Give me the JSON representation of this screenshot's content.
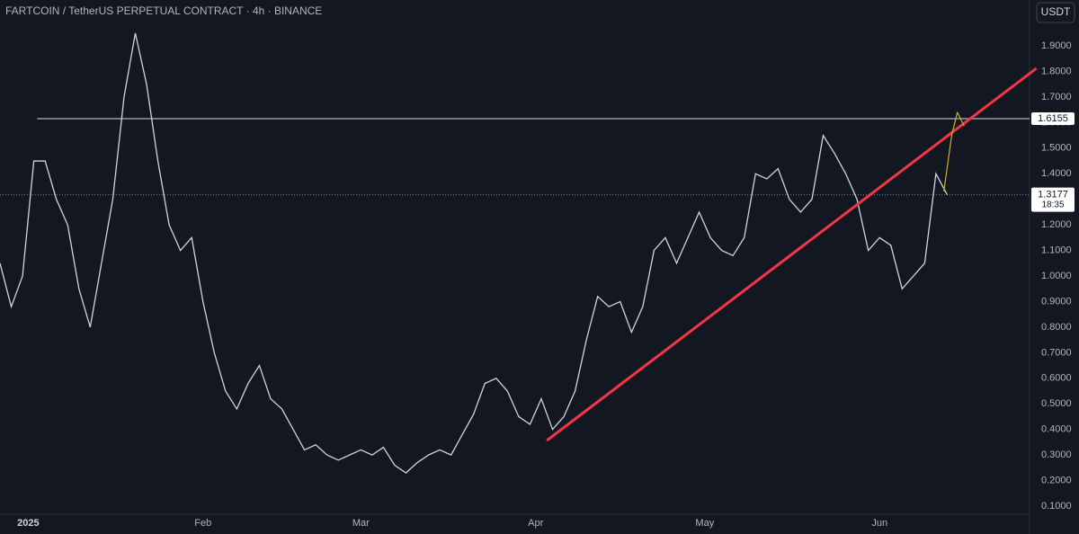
{
  "chart_data": {
    "type": "line",
    "title": "FARTCOIN / TetherUS PERPETUAL CONTRACT · 4h · BINANCE",
    "currency": "USDT",
    "background": "#131722",
    "series": [
      {
        "color": "#d1d4dc",
        "values": [
          1.05,
          0.88,
          1.0,
          1.45,
          1.45,
          1.3,
          1.2,
          0.95,
          0.8,
          1.05,
          1.3,
          1.7,
          1.95,
          1.75,
          1.45,
          1.2,
          1.1,
          1.15,
          0.9,
          0.7,
          0.55,
          0.48,
          0.58,
          0.65,
          0.52,
          0.48,
          0.4,
          0.32,
          0.34,
          0.3,
          0.28,
          0.3,
          0.32,
          0.3,
          0.33,
          0.26,
          0.23,
          0.27,
          0.3,
          0.32,
          0.3,
          0.38,
          0.46,
          0.58,
          0.6,
          0.55,
          0.45,
          0.42,
          0.52,
          0.4,
          0.45,
          0.55,
          0.75,
          0.92,
          0.88,
          0.9,
          0.78,
          0.88,
          1.1,
          1.15,
          1.05,
          1.15,
          1.25,
          1.15,
          1.1,
          1.08,
          1.15,
          1.4,
          1.38,
          1.42,
          1.3,
          1.25,
          1.3,
          1.55,
          1.48,
          1.4,
          1.3,
          1.1,
          1.15,
          1.12,
          0.95,
          1.0,
          1.05,
          1.4,
          1.3177
        ]
      }
    ],
    "xlim": [
      0,
      91.3
    ],
    "xticks": [
      {
        "value": 2.5,
        "label": "2025"
      },
      {
        "value": 18,
        "label": "Feb"
      },
      {
        "value": 32,
        "label": "Mar"
      },
      {
        "value": 47.5,
        "label": "Apr"
      },
      {
        "value": 62.5,
        "label": "May"
      },
      {
        "value": 78,
        "label": "Jun"
      }
    ],
    "ylim": [
      -0.009,
      2.0796
    ],
    "yticks": [
      {
        "value": 0.1,
        "label": "0.1000"
      },
      {
        "value": 0.2,
        "label": "0.2000"
      },
      {
        "value": 0.3,
        "label": "0.3000"
      },
      {
        "value": 0.4,
        "label": "0.4000"
      },
      {
        "value": 0.5,
        "label": "0.5000"
      },
      {
        "value": 0.6,
        "label": "0.6000"
      },
      {
        "value": 0.7,
        "label": "0.7000"
      },
      {
        "value": 0.8,
        "label": "0.8000"
      },
      {
        "value": 0.9,
        "label": "0.9000"
      },
      {
        "value": 1.0,
        "label": "1.0000"
      },
      {
        "value": 1.1,
        "label": "1.1000"
      },
      {
        "value": 1.2,
        "label": "1.2000"
      },
      {
        "value": 1.3,
        "label": "1.3000"
      },
      {
        "value": 1.4,
        "label": "1.4000"
      },
      {
        "value": 1.5,
        "label": "1.5000"
      },
      {
        "value": 1.6,
        "label": "1.6000"
      },
      {
        "value": 1.7,
        "label": "1.7000"
      },
      {
        "value": 1.8,
        "label": "1.8000"
      },
      {
        "value": 1.9,
        "label": "1.9000"
      }
    ],
    "level": {
      "value": 1.6155,
      "color": "#b2b5be"
    },
    "last_price": {
      "value": 1.3177,
      "countdown": "18:35"
    },
    "trendline": {
      "start": [
        48.5,
        0.357
      ],
      "end": [
        91.9,
        1.812
      ],
      "color": "#f23645"
    },
    "projection": {
      "x": [
        83.7,
        84.4,
        84.9,
        85.5
      ],
      "values": [
        1.331,
        1.552,
        1.64,
        1.587
      ],
      "color": "#c9b22c"
    }
  }
}
